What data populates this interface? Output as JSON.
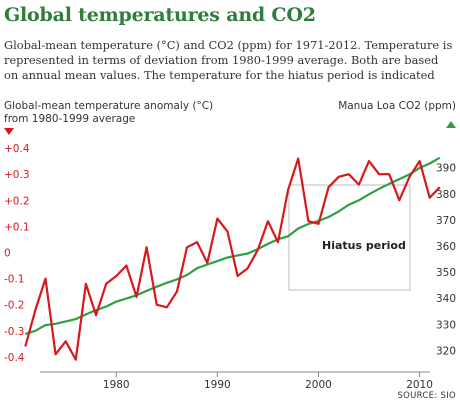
{
  "chart_data": {
    "type": "line",
    "title": "Global temperatures and CO2",
    "subtitle": "Global-mean temperature (°C) and CO2 (ppm) for 1971-2012. Temperature is represented in terms of deviation from 1980-1999 average. Both are based on annual mean values. The temperature for the hiatus period is indicated",
    "left_axis_label": "Global-mean temperature anomaly (°C) from 1980-1999 average",
    "right_axis_label": "Manua Loa CO2 (ppm)",
    "source": "SOURCE: SIO",
    "annotation": {
      "label": "Hiatus period",
      "x_range": [
        1998,
        2012
      ]
    },
    "x": [
      1971,
      1972,
      1973,
      1974,
      1975,
      1976,
      1977,
      1978,
      1979,
      1980,
      1981,
      1982,
      1983,
      1984,
      1985,
      1986,
      1987,
      1988,
      1989,
      1990,
      1991,
      1992,
      1993,
      1994,
      1995,
      1996,
      1997,
      1998,
      1999,
      2000,
      2001,
      2002,
      2003,
      2004,
      2005,
      2006,
      2007,
      2008,
      2009,
      2010,
      2011,
      2012
    ],
    "xlim": [
      1968.5,
      2014
    ],
    "x_ticks": [
      {
        "value": 1980,
        "label": "1980"
      },
      {
        "value": 1990,
        "label": "1990"
      },
      {
        "value": 2000,
        "label": "2000"
      },
      {
        "value": 2010,
        "label": "2010"
      }
    ],
    "left_axis": {
      "range": [
        -0.45,
        0.45
      ],
      "ticks": [
        {
          "value": 0.4,
          "label": "+0.4"
        },
        {
          "value": 0.3,
          "label": "+0.3"
        },
        {
          "value": 0.2,
          "label": "+0.2"
        },
        {
          "value": 0.1,
          "label": "+0.1"
        },
        {
          "value": 0,
          "label": "0"
        },
        {
          "value": -0.1,
          "label": "-0.1"
        },
        {
          "value": -0.2,
          "label": "-0.2"
        },
        {
          "value": -0.3,
          "label": "-0.3"
        },
        {
          "value": -0.4,
          "label": "-0.4"
        }
      ]
    },
    "right_axis": {
      "range": [
        312.5,
        402.5
      ],
      "ticks": [
        {
          "value": 390,
          "label": "390"
        },
        {
          "value": 380,
          "label": "380"
        },
        {
          "value": 370,
          "label": "370"
        },
        {
          "value": 360,
          "label": "360"
        },
        {
          "value": 350,
          "label": "350"
        },
        {
          "value": 340,
          "label": "340"
        },
        {
          "value": 330,
          "label": "330"
        },
        {
          "value": 320,
          "label": "320"
        }
      ]
    },
    "series": [
      {
        "axis": "left",
        "color": "#d7191c",
        "values": [
          -0.36,
          -0.22,
          -0.1,
          -0.39,
          -0.34,
          -0.41,
          -0.12,
          -0.24,
          -0.12,
          -0.09,
          -0.05,
          -0.17,
          0.02,
          -0.2,
          -0.21,
          -0.15,
          0.02,
          0.04,
          -0.04,
          0.13,
          0.08,
          -0.09,
          -0.06,
          0.01,
          0.12,
          0.04,
          0.24,
          0.36,
          0.12,
          0.11,
          0.25,
          0.29,
          0.3,
          0.26,
          0.35,
          0.3,
          0.3,
          0.2,
          0.29,
          0.35,
          0.21,
          0.25
        ]
      },
      {
        "axis": "right",
        "color": "#2ea043",
        "values": [
          326.3,
          327.5,
          329.7,
          330.2,
          331.1,
          332.0,
          333.8,
          335.4,
          336.8,
          338.7,
          339.9,
          341.1,
          342.8,
          344.4,
          345.9,
          347.2,
          348.9,
          351.5,
          352.9,
          354.2,
          355.6,
          356.4,
          357.1,
          358.8,
          360.8,
          362.6,
          363.7,
          366.7,
          368.4,
          369.6,
          371.1,
          373.2,
          375.8,
          377.5,
          379.8,
          381.9,
          383.8,
          385.6,
          387.4,
          389.9,
          391.6,
          393.8
        ]
      }
    ],
    "grid": false,
    "legend": "none",
    "colors": {
      "title": "#2f7d3a",
      "left_axis": "#d7191c",
      "right_axis": "#2ea043",
      "text": "#333333"
    }
  }
}
